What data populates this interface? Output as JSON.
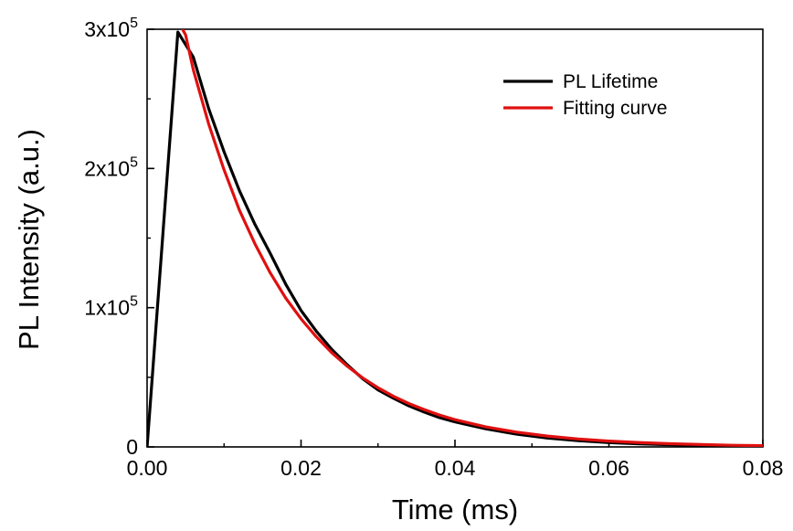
{
  "chart_data": {
    "type": "line",
    "xlabel": "Time (ms)",
    "ylabel": "PL Intensity (a.u.)",
    "xlim": [
      0,
      0.08
    ],
    "ylim": [
      0,
      300000
    ],
    "x_ticks": [
      {
        "value": 0.0,
        "label": "0.00"
      },
      {
        "value": 0.02,
        "label": "0.02"
      },
      {
        "value": 0.04,
        "label": "0.04"
      },
      {
        "value": 0.06,
        "label": "0.06"
      },
      {
        "value": 0.08,
        "label": "0.08"
      }
    ],
    "y_ticks": [
      {
        "value": 0,
        "mant": "0",
        "exp": ""
      },
      {
        "value": 100000,
        "mant": "1x10",
        "exp": "5"
      },
      {
        "value": 200000,
        "mant": "2x10",
        "exp": "5"
      },
      {
        "value": 300000,
        "mant": "3x10",
        "exp": "5"
      }
    ],
    "grid": false,
    "legend_position": "top-right",
    "series": [
      {
        "name": "PL Lifetime",
        "color": "#000000",
        "x": [
          0.0,
          0.004,
          0.006,
          0.008,
          0.01,
          0.012,
          0.014,
          0.016,
          0.018,
          0.02,
          0.022,
          0.024,
          0.026,
          0.028,
          0.03,
          0.032,
          0.034,
          0.036,
          0.038,
          0.04,
          0.044,
          0.048,
          0.052,
          0.056,
          0.06,
          0.064,
          0.068,
          0.072,
          0.076,
          0.08
        ],
        "y": [
          0,
          298000,
          280000,
          243000,
          212000,
          184000,
          160000,
          139000,
          117000,
          98000,
          83000,
          70000,
          59000,
          49000,
          41000,
          35000,
          29500,
          25000,
          21000,
          18000,
          13000,
          9200,
          6400,
          4500,
          3100,
          2200,
          1500,
          1000,
          600,
          400
        ]
      },
      {
        "name": "Fitting curve",
        "color": "#e01010",
        "x": [
          0.0045,
          0.005,
          0.006,
          0.008,
          0.01,
          0.012,
          0.014,
          0.016,
          0.018,
          0.02,
          0.022,
          0.024,
          0.026,
          0.028,
          0.03,
          0.032,
          0.034,
          0.036,
          0.038,
          0.04,
          0.044,
          0.048,
          0.052,
          0.056,
          0.06,
          0.064,
          0.068,
          0.072,
          0.076,
          0.08
        ],
        "y": [
          301000,
          296000,
          271000,
          232000,
          199000,
          170000,
          146000,
          125000,
          107000,
          92000,
          79000,
          67600,
          58000,
          49600,
          42500,
          36400,
          31200,
          26800,
          22900,
          19600,
          14400,
          10600,
          7800,
          5700,
          4200,
          3100,
          2300,
          1700,
          1200,
          900
        ]
      }
    ]
  }
}
